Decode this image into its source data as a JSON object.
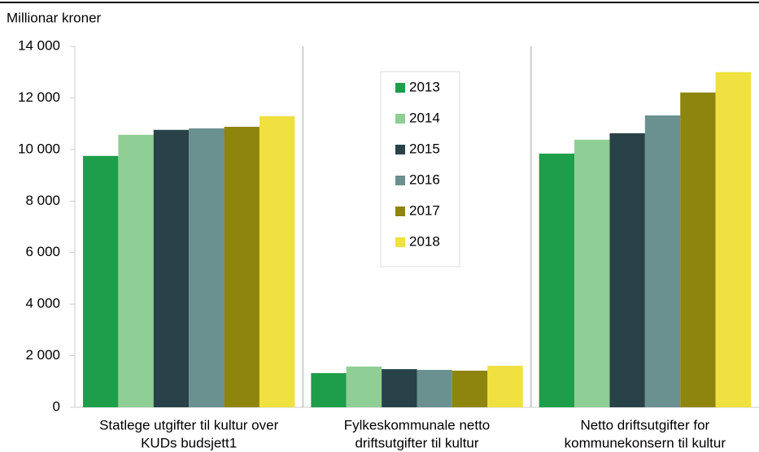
{
  "chart_data": {
    "type": "bar",
    "ylabel": "Millionar kroner",
    "categories": [
      [
        "Statlege utgifter til kultur over",
        "KUDs budsjett1"
      ],
      [
        "Fylkeskommunale netto",
        "driftsutgifter til kultur"
      ],
      [
        "Netto driftsutgifter for",
        "kommunekonsern til kultur"
      ]
    ],
    "series": [
      {
        "name": "2013",
        "color": "#1e9e4a",
        "values": [
          9750,
          1325,
          9840
        ]
      },
      {
        "name": "2014",
        "color": "#8fce94",
        "values": [
          10570,
          1580,
          10380
        ]
      },
      {
        "name": "2015",
        "color": "#284248",
        "values": [
          10760,
          1480,
          10630
        ]
      },
      {
        "name": "2016",
        "color": "#6b9090",
        "values": [
          10820,
          1450,
          11320
        ]
      },
      {
        "name": "2017",
        "color": "#8e850e",
        "values": [
          10880,
          1420,
          12210
        ]
      },
      {
        "name": "2018",
        "color": "#f0e040",
        "values": [
          11290,
          1610,
          13000
        ]
      }
    ],
    "ylim": [
      0,
      14000
    ],
    "yticks": [
      0,
      {
        "value": 2000,
        "label": "2 000"
      },
      {
        "value": 4000,
        "label": "4 000"
      },
      {
        "value": 6000,
        "label": "6 000"
      },
      {
        "value": 8000,
        "label": "8 000"
      },
      {
        "value": 10000,
        "label": "10 000"
      },
      {
        "value": 12000,
        "label": "12 000"
      },
      {
        "value": 14000,
        "label": "14 000"
      }
    ],
    "grid": false,
    "legend": "top"
  }
}
